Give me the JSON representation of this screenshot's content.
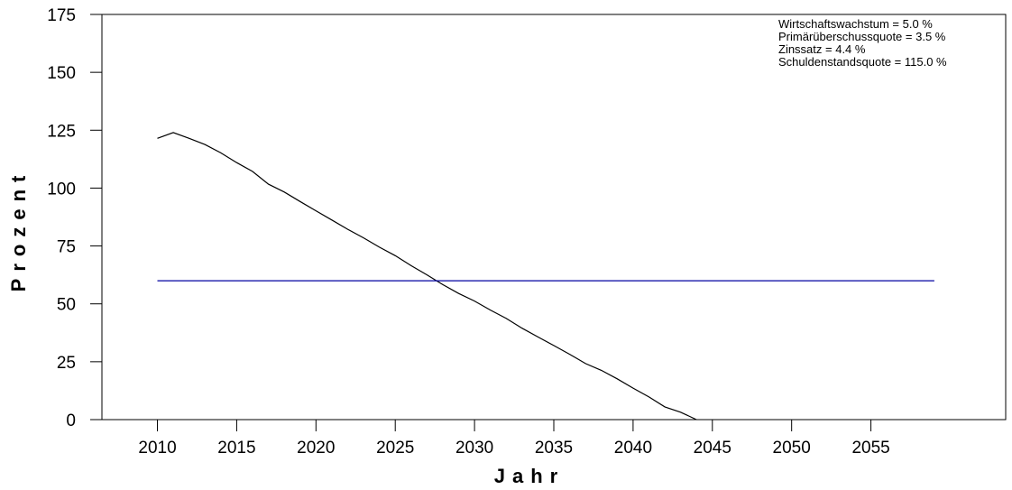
{
  "chart_data": {
    "type": "line",
    "xlabel": "Jahr",
    "ylabel": "Prozent",
    "xlim": [
      2006.5,
      2063.5
    ],
    "ylim": [
      0,
      175
    ],
    "x_ticks": [
      2010,
      2015,
      2020,
      2025,
      2030,
      2035,
      2040,
      2045,
      2050,
      2055
    ],
    "y_ticks": [
      0,
      25,
      50,
      75,
      100,
      125,
      150,
      175
    ],
    "grid": false,
    "annotations": [
      "Wirtschaftswachstum = 5.0 %",
      "Primärüberschussquote = 3.5 %",
      "Zinssatz = 4.4 %",
      "Schuldenstandsquote = 115.0 %"
    ],
    "annotation_position": "top-right",
    "series": [
      {
        "color": "#000000",
        "x": [
          2010,
          2011,
          2012,
          2013,
          2014,
          2015,
          2016,
          2017,
          2018,
          2019,
          2020,
          2021,
          2022,
          2023,
          2024,
          2025,
          2026,
          2027,
          2028,
          2029,
          2030,
          2031,
          2032,
          2033,
          2034,
          2035,
          2036,
          2037,
          2038,
          2039,
          2040,
          2041,
          2042,
          2043,
          2044
        ],
        "y": [
          121.5,
          124,
          121.5,
          118.8,
          115.2,
          111,
          107.2,
          101.7,
          98.3,
          94.2,
          90.2,
          86.2,
          82.2,
          78.5,
          74.5,
          70.8,
          66.5,
          62.5,
          58.3,
          54.5,
          51.2,
          47.3,
          43.7,
          39.5,
          35.7,
          32,
          28.2,
          24.2,
          21.3,
          17.6,
          13.6,
          9.8,
          5.5,
          3.2,
          0
        ]
      },
      {
        "color": "#0000a0",
        "x": [
          2010,
          2059
        ],
        "y": [
          60,
          60
        ]
      }
    ]
  }
}
